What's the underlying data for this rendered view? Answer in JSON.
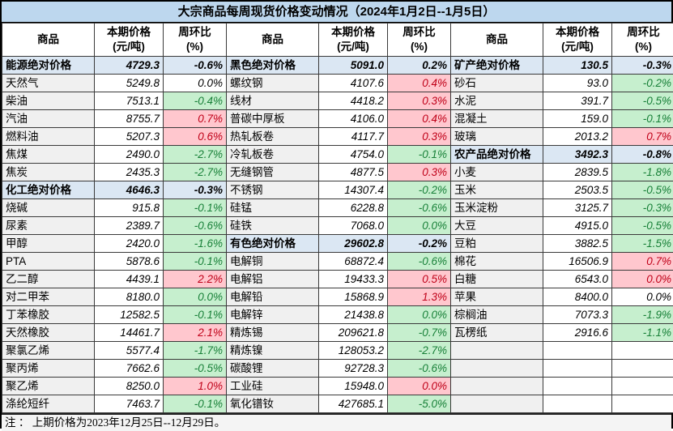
{
  "title": "大宗商品每周现货价格变动情况（2024年1月2日--1月5日）",
  "note": "注 ： 上期价格为2023年12月25日--12月29日。",
  "header": {
    "commodity": "商品",
    "price": "本期价格\n(元/吨)",
    "pct": "周环比\n(%)"
  },
  "colors": {
    "title_bg": "#bdd7ee",
    "section_bg": "#dbe7f3",
    "name_bg": "#f0f0f0",
    "up_bg": "#ffc7ce",
    "up_text": "#c00018",
    "down_bg": "#c6efce",
    "down_text": "#188038"
  },
  "rows": [
    {
      "cells": [
        {
          "name": "能源绝对价格",
          "price": "4729.3",
          "pct": "-0.6%",
          "kind": "section"
        },
        {
          "name": "黑色绝对价格",
          "price": "5091.0",
          "pct": "0.2%",
          "kind": "section"
        },
        {
          "name": "矿产绝对价格",
          "price": "130.5",
          "pct": "-0.3%",
          "kind": "section"
        }
      ]
    },
    {
      "cells": [
        {
          "name": "天然气",
          "price": "5249.8",
          "pct": "0.0%",
          "kind": "flat"
        },
        {
          "name": "螺纹钢",
          "price": "4107.6",
          "pct": "0.4%",
          "kind": "up"
        },
        {
          "name": "砂石",
          "price": "93.0",
          "pct": "-0.2%",
          "kind": "down"
        }
      ]
    },
    {
      "cells": [
        {
          "name": "柴油",
          "price": "7513.1",
          "pct": "-0.4%",
          "kind": "down"
        },
        {
          "name": "线材",
          "price": "4418.2",
          "pct": "0.3%",
          "kind": "up"
        },
        {
          "name": "水泥",
          "price": "391.7",
          "pct": "-0.5%",
          "kind": "down"
        }
      ]
    },
    {
      "cells": [
        {
          "name": "汽油",
          "price": "8755.7",
          "pct": "0.7%",
          "kind": "up"
        },
        {
          "name": "普碳中厚板",
          "price": "4106.0",
          "pct": "0.4%",
          "kind": "up"
        },
        {
          "name": "混凝土",
          "price": "159.0",
          "pct": "-0.1%",
          "kind": "down"
        }
      ]
    },
    {
      "cells": [
        {
          "name": "燃料油",
          "price": "5207.3",
          "pct": "0.6%",
          "kind": "up"
        },
        {
          "name": "热轧板卷",
          "price": "4117.7",
          "pct": "0.3%",
          "kind": "up"
        },
        {
          "name": "玻璃",
          "price": "2013.2",
          "pct": "0.7%",
          "kind": "up"
        }
      ]
    },
    {
      "cells": [
        {
          "name": "焦煤",
          "price": "2490.0",
          "pct": "-2.7%",
          "kind": "down"
        },
        {
          "name": "冷轧板卷",
          "price": "4754.0",
          "pct": "-0.1%",
          "kind": "down"
        },
        {
          "name": "农产品绝对价格",
          "price": "3492.3",
          "pct": "-0.8%",
          "kind": "section"
        }
      ]
    },
    {
      "cells": [
        {
          "name": "焦炭",
          "price": "2435.3",
          "pct": "-2.7%",
          "kind": "down"
        },
        {
          "name": "无缝钢管",
          "price": "4877.5",
          "pct": "0.3%",
          "kind": "up"
        },
        {
          "name": "小麦",
          "price": "2839.5",
          "pct": "-1.8%",
          "kind": "down"
        }
      ]
    },
    {
      "cells": [
        {
          "name": "化工绝对价格",
          "price": "4646.3",
          "pct": "-0.3%",
          "kind": "section"
        },
        {
          "name": "不锈钢",
          "price": "14307.4",
          "pct": "-0.2%",
          "kind": "down"
        },
        {
          "name": "玉米",
          "price": "2503.5",
          "pct": "-0.5%",
          "kind": "down"
        }
      ]
    },
    {
      "cells": [
        {
          "name": "烧碱",
          "price": "915.8",
          "pct": "-0.1%",
          "kind": "down"
        },
        {
          "name": "硅锰",
          "price": "6228.8",
          "pct": "-0.6%",
          "kind": "down"
        },
        {
          "name": "玉米淀粉",
          "price": "3125.7",
          "pct": "-0.3%",
          "kind": "down"
        }
      ]
    },
    {
      "cells": [
        {
          "name": "尿素",
          "price": "2389.7",
          "pct": "-0.6%",
          "kind": "down"
        },
        {
          "name": "硅铁",
          "price": "7068.0",
          "pct": "0.0%",
          "kind": "down"
        },
        {
          "name": "大豆",
          "price": "4915.0",
          "pct": "-0.5%",
          "kind": "down"
        }
      ]
    },
    {
      "cells": [
        {
          "name": "甲醇",
          "price": "2420.0",
          "pct": "-1.6%",
          "kind": "down"
        },
        {
          "name": "有色绝对价格",
          "price": "29602.8",
          "pct": "-0.2%",
          "kind": "section"
        },
        {
          "name": "豆粕",
          "price": "3882.5",
          "pct": "-1.5%",
          "kind": "down"
        }
      ]
    },
    {
      "cells": [
        {
          "name": "PTA",
          "price": "5878.6",
          "pct": "-0.1%",
          "kind": "down"
        },
        {
          "name": "电解铜",
          "price": "68872.4",
          "pct": "-0.6%",
          "kind": "down"
        },
        {
          "name": "棉花",
          "price": "16506.9",
          "pct": "0.7%",
          "kind": "up"
        }
      ]
    },
    {
      "cells": [
        {
          "name": "乙二醇",
          "price": "4439.1",
          "pct": "2.2%",
          "kind": "up"
        },
        {
          "name": "电解铝",
          "price": "19433.3",
          "pct": "0.5%",
          "kind": "up"
        },
        {
          "name": "白糖",
          "price": "6543.0",
          "pct": "0.0%",
          "kind": "up"
        }
      ]
    },
    {
      "cells": [
        {
          "name": "对二甲苯",
          "price": "8180.0",
          "pct": "0.0%",
          "kind": "down"
        },
        {
          "name": "电解铅",
          "price": "15868.9",
          "pct": "1.3%",
          "kind": "up"
        },
        {
          "name": "苹果",
          "price": "8400.0",
          "pct": "0.0%",
          "kind": "flat"
        }
      ]
    },
    {
      "cells": [
        {
          "name": "丁苯橡胶",
          "price": "12582.5",
          "pct": "-0.1%",
          "kind": "down"
        },
        {
          "name": "电解锌",
          "price": "21438.8",
          "pct": "0.0%",
          "kind": "down"
        },
        {
          "name": "棕榈油",
          "price": "7073.3",
          "pct": "-1.9%",
          "kind": "down"
        }
      ]
    },
    {
      "cells": [
        {
          "name": "天然橡胶",
          "price": "14461.7",
          "pct": "2.1%",
          "kind": "up"
        },
        {
          "name": "精炼锡",
          "price": "209621.8",
          "pct": "-0.7%",
          "kind": "down"
        },
        {
          "name": "瓦楞纸",
          "price": "2916.6",
          "pct": "-1.1%",
          "kind": "down"
        }
      ]
    },
    {
      "cells": [
        {
          "name": "聚氯乙烯",
          "price": "5577.4",
          "pct": "-1.7%",
          "kind": "down"
        },
        {
          "name": "精炼镍",
          "price": "128053.2",
          "pct": "-2.7%",
          "kind": "down"
        },
        {
          "name": "",
          "price": "",
          "pct": "",
          "kind": "empty"
        }
      ]
    },
    {
      "cells": [
        {
          "name": "聚丙烯",
          "price": "7662.6",
          "pct": "-0.5%",
          "kind": "down"
        },
        {
          "name": "碳酸锂",
          "price": "92728.3",
          "pct": "-0.6%",
          "kind": "down"
        },
        {
          "name": "",
          "price": "",
          "pct": "",
          "kind": "empty"
        }
      ]
    },
    {
      "cells": [
        {
          "name": "聚乙烯",
          "price": "8250.0",
          "pct": "1.0%",
          "kind": "up"
        },
        {
          "name": "工业硅",
          "price": "15948.0",
          "pct": "0.0%",
          "kind": "up"
        },
        {
          "name": "",
          "price": "",
          "pct": "",
          "kind": "empty"
        }
      ]
    },
    {
      "cells": [
        {
          "name": "涤纶短纤",
          "price": "7463.7",
          "pct": "-0.1%",
          "kind": "down"
        },
        {
          "name": "氧化镨钕",
          "price": "427685.1",
          "pct": "-5.0%",
          "kind": "down"
        },
        {
          "name": "",
          "price": "",
          "pct": "",
          "kind": "empty"
        }
      ]
    }
  ]
}
